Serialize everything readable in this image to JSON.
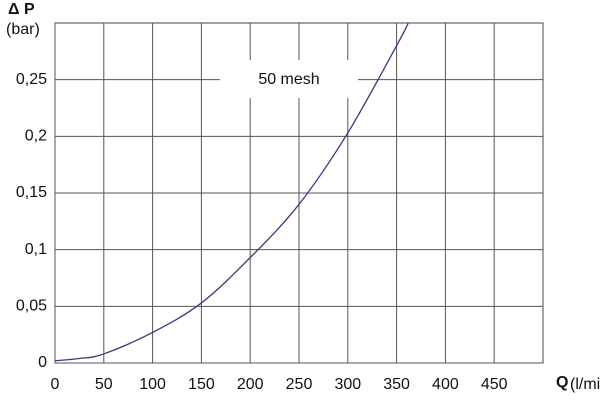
{
  "chart_data": {
    "type": "line",
    "y_label": "Δ P",
    "y_unit": "(bar)",
    "x_label": "Q",
    "x_unit": "(l/min)",
    "annotation": "50 mesh",
    "series": [
      {
        "name": "50 mesh",
        "color": "#3a3a78",
        "x": [
          0,
          25,
          50,
          100,
          150,
          200,
          250,
          300,
          350,
          362
        ],
        "values": [
          0.002,
          0.004,
          0.008,
          0.027,
          0.053,
          0.093,
          0.14,
          0.203,
          0.28,
          0.3
        ]
      }
    ],
    "xlim": [
      0,
      500
    ],
    "xticks": [
      0,
      50,
      100,
      150,
      200,
      250,
      300,
      350,
      400,
      450
    ],
    "ylim": [
      0,
      0.3
    ],
    "yticks": [
      0,
      {
        "value": 0.05,
        "label": "0,05"
      },
      {
        "value": 0.1,
        "label": "0,1"
      },
      {
        "value": 0.15,
        "label": "0,15"
      },
      {
        "value": 0.2,
        "label": "0,2"
      },
      {
        "value": 0.25,
        "label": "0,25"
      }
    ],
    "grid": true
  }
}
